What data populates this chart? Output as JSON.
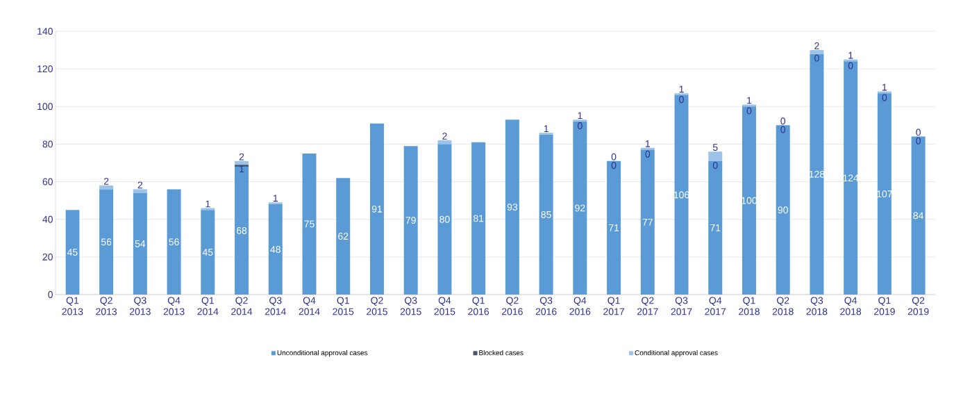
{
  "chart_data": {
    "type": "bar",
    "stacked": true,
    "categories": [
      "Q1 2013",
      "Q2 2013",
      "Q3 2013",
      "Q4 2013",
      "Q1 2014",
      "Q2 2014",
      "Q3 2014",
      "Q4 2014",
      "Q1 2015",
      "Q2 2015",
      "Q3 2015",
      "Q4 2015",
      "Q1 2016",
      "Q2 2016",
      "Q3 2016",
      "Q4 2016",
      "Q1 2017",
      "Q2 2017",
      "Q3 2017",
      "Q4 2017",
      "Q1 2018",
      "Q2 2018",
      "Q3 2018",
      "Q4 2018",
      "Q1 2019",
      "Q2 2019"
    ],
    "series": [
      {
        "name": "Unconditional approval cases",
        "color": "#5b9bd5",
        "values": [
          45,
          56,
          54,
          56,
          45,
          68,
          48,
          75,
          62,
          91,
          79,
          80,
          81,
          93,
          85,
          92,
          71,
          77,
          106,
          71,
          100,
          90,
          128,
          124,
          107,
          84
        ],
        "value_labels": [
          "45",
          "56",
          "54",
          "56",
          "45",
          "68",
          "48",
          "75",
          "62",
          "91",
          "79",
          "80",
          "81",
          "93",
          "85",
          "92",
          "71",
          "77",
          "106",
          "71",
          "100",
          "90",
          "128",
          "124",
          "107",
          "84"
        ]
      },
      {
        "name": "Blocked cases",
        "color": "#44546a",
        "values": [
          0,
          0,
          0,
          0,
          0,
          1,
          0,
          0,
          0,
          0,
          0,
          0,
          0,
          0,
          0,
          0,
          0,
          0,
          0,
          0,
          0,
          0,
          0,
          0,
          0,
          0
        ],
        "value_labels": [
          null,
          null,
          null,
          null,
          null,
          "1",
          null,
          null,
          null,
          null,
          null,
          null,
          null,
          null,
          null,
          "0",
          "0",
          "0",
          "0",
          "0",
          "0",
          "0",
          "0",
          "0",
          "0",
          "0"
        ]
      },
      {
        "name": "Conditional approval cases",
        "color": "#9dc3e6",
        "values": [
          0,
          2,
          2,
          0,
          1,
          2,
          1,
          0,
          0,
          0,
          0,
          2,
          0,
          0,
          1,
          1,
          0,
          1,
          1,
          5,
          1,
          0,
          2,
          1,
          1,
          0
        ],
        "value_labels": [
          null,
          "2",
          "2",
          null,
          "1",
          "2",
          "1",
          null,
          null,
          null,
          null,
          "2",
          null,
          null,
          "1",
          "1",
          "0",
          "1",
          "1",
          "5",
          "1",
          "0",
          "2",
          "1",
          "1",
          "0"
        ]
      }
    ],
    "ylim": [
      0,
      140
    ],
    "yticks": [
      0,
      20,
      40,
      60,
      80,
      100,
      120,
      140
    ],
    "grid": "y",
    "legend": "bottom"
  }
}
